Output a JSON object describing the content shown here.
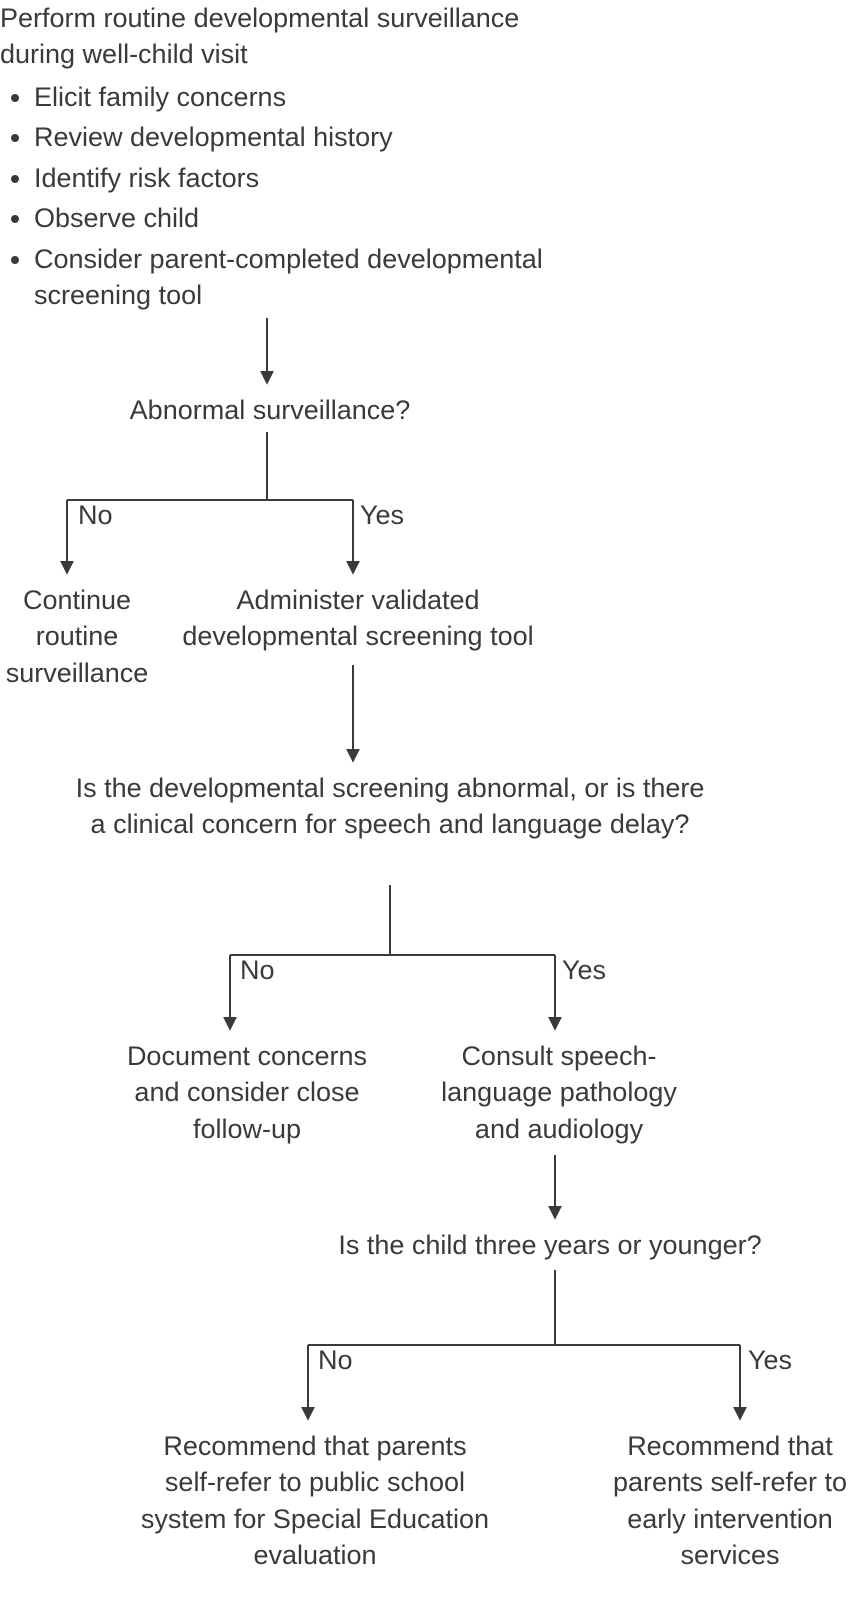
{
  "type": "flowchart",
  "colors": {
    "background": "#ffffff",
    "text": "#3a3a3a",
    "line": "#3a3a3a"
  },
  "fontsize": 27,
  "line_width": 2,
  "arrow_size": 14,
  "nodes": {
    "root_heading": "Perform routine developmental surveillance during well-child visit",
    "root_bullets": [
      "Elicit family concerns",
      "Review developmental history",
      "Identify risk factors",
      "Observe child",
      "Consider parent-completed developmental screening tool"
    ],
    "q1": "Abnormal surveillance?",
    "q1_no": "No",
    "q1_yes": "Yes",
    "leaf_continue": "Continue routine surveillance",
    "admin_tool": "Administer validated developmental screening tool",
    "q2": "Is the developmental screening abnormal, or is there a clinical concern for speech and language delay?",
    "q2_no": "No",
    "q2_yes": "Yes",
    "leaf_document": "Document concerns and consider close follow-up",
    "consult_slp": "Consult speech-language pathology and audiology",
    "q3": "Is the child three years or younger?",
    "q3_no": "No",
    "q3_yes": "Yes",
    "leaf_school": "Recommend that parents self-refer to public school system for Special Education evaluation",
    "leaf_early": "Recommend that parents self-refer to early intervention services"
  }
}
